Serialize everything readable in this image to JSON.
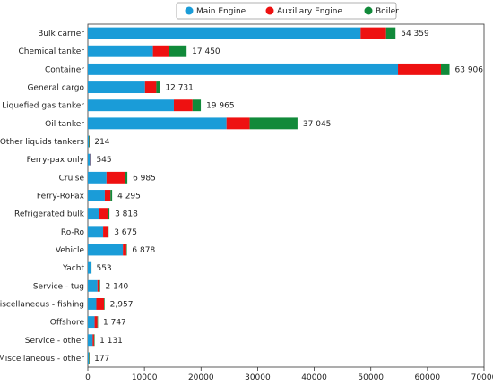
{
  "chart_data": {
    "type": "bar",
    "orientation": "horizontal",
    "stacked": true,
    "categories": [
      "Bulk carrier",
      "Chemical tanker",
      "Container",
      "General cargo",
      "Liquefied gas tanker",
      "Oil tanker",
      "Other liquids tankers",
      "Ferry-pax only",
      "Cruise",
      "Ferry-RoPax",
      "Refrigerated bulk",
      "Ro-Ro",
      "Vehicle",
      "Yacht",
      "Service - tug",
      "Miscellaneous - fishing",
      "Offshore",
      "Service - other",
      "Miscellaneous - other"
    ],
    "series": [
      {
        "name": "Main Engine",
        "color": "#1a9cd8",
        "values": [
          48200,
          11500,
          54800,
          10100,
          15200,
          24500,
          190,
          420,
          3300,
          3000,
          1900,
          2700,
          6200,
          540,
          1700,
          1500,
          1200,
          850,
          160
        ]
      },
      {
        "name": "Auxiliary Engine",
        "color": "#ee1111",
        "values": [
          4500,
          2900,
          7600,
          2000,
          3300,
          4100,
          20,
          100,
          3300,
          1000,
          1700,
          800,
          600,
          10,
          400,
          1350,
          500,
          250,
          15
        ]
      },
      {
        "name": "Boiler",
        "color": "#118a3a",
        "values": [
          1659,
          3050,
          1506,
          631,
          1465,
          8445,
          4,
          25,
          385,
          295,
          218,
          175,
          78,
          3,
          40,
          107,
          47,
          31,
          2
        ]
      }
    ],
    "totals": [
      "54 359",
      "17 450",
      "63 906",
      "12 731",
      "19 965",
      "37 045",
      "214",
      "545",
      "6 985",
      "4 295",
      "3 818",
      "3 675",
      "6 878",
      "553",
      "2 140",
      "2,957",
      "1 747",
      "1 131",
      "177"
    ],
    "xticks": [
      0,
      10000,
      20000,
      30000,
      40000,
      50000,
      60000,
      70000
    ],
    "xlim": [
      0,
      70000
    ],
    "legend_position": "top-center",
    "grid": false
  }
}
